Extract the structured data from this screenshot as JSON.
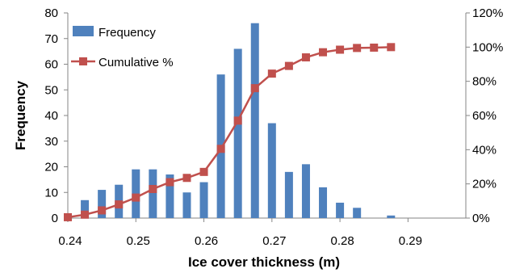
{
  "chart_data": {
    "type": "bar",
    "xlabel": "Ice cover thickness (m)",
    "ylabel": "Frequency",
    "x_ticks": [
      "0.24",
      "0.25",
      "0.26",
      "0.27",
      "0.28",
      "0.29"
    ],
    "x_range": [
      0.24,
      0.2985
    ],
    "y_ticks": [
      "0",
      "10",
      "20",
      "30",
      "40",
      "50",
      "60",
      "70",
      "80"
    ],
    "ylim": [
      0,
      80
    ],
    "y2_ticks": [
      "0%",
      "20%",
      "40%",
      "60%",
      "80%",
      "100%",
      "120%"
    ],
    "y2lim": [
      0,
      120
    ],
    "legend_position": "top-left",
    "grid": false,
    "x": [
      0.24,
      0.2425,
      0.245,
      0.2475,
      0.25,
      0.2525,
      0.255,
      0.2575,
      0.26,
      0.2625,
      0.265,
      0.2675,
      0.27,
      0.2725,
      0.275,
      0.2775,
      0.28,
      0.2825,
      0.285,
      0.2875,
      0.29,
      0.2925,
      0.295,
      0.2975
    ],
    "series": [
      {
        "name": "Frequency",
        "type": "bar",
        "color": "#4f81bd",
        "values": [
          0,
          7,
          11,
          13,
          19,
          19,
          17,
          10,
          14,
          56,
          66,
          76,
          37,
          18,
          21,
          12,
          6,
          4,
          0,
          1,
          null,
          null,
          null,
          null
        ]
      },
      {
        "name": "Cumulative %",
        "type": "line",
        "axis": "right",
        "color": "#c0504d",
        "values": [
          0.5,
          2,
          4.5,
          8,
          12,
          17,
          21,
          23.5,
          27,
          40.5,
          57,
          76,
          84.5,
          89,
          94,
          97,
          98.5,
          99.5,
          99.7,
          100,
          null,
          null,
          null,
          null
        ]
      }
    ]
  }
}
